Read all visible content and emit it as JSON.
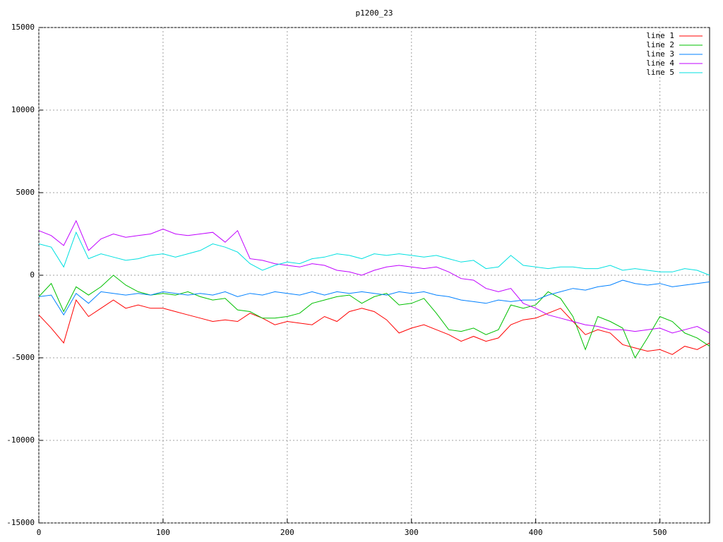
{
  "chart_data": {
    "type": "line",
    "title": "p1200_23",
    "x": [
      0,
      10,
      20,
      30,
      40,
      50,
      60,
      70,
      80,
      90,
      100,
      110,
      120,
      130,
      140,
      150,
      160,
      170,
      180,
      190,
      200,
      210,
      220,
      230,
      240,
      250,
      260,
      270,
      280,
      290,
      300,
      310,
      320,
      330,
      340,
      350,
      360,
      370,
      380,
      390,
      400,
      410,
      420,
      430,
      440,
      450,
      460,
      470,
      480,
      490,
      500,
      510,
      520,
      530,
      540
    ],
    "xlim": [
      0,
      540
    ],
    "xticks": [
      0,
      100,
      200,
      300,
      400,
      500
    ],
    "ylim": [
      -15000,
      15000
    ],
    "yticks": [
      -15000,
      -10000,
      -5000,
      0,
      5000,
      10000,
      15000
    ],
    "grid": true,
    "legend": "top-right",
    "series": [
      {
        "name": "line 1",
        "color": "#ff0000",
        "values": [
          -2400,
          -3200,
          -4100,
          -1500,
          -2500,
          -2000,
          -1500,
          -2000,
          -1800,
          -2000,
          -2000,
          -2200,
          -2400,
          -2600,
          -2800,
          -2700,
          -2800,
          -2300,
          -2600,
          -3000,
          -2800,
          -2900,
          -3000,
          -2500,
          -2800,
          -2200,
          -2000,
          -2200,
          -2700,
          -3500,
          -3200,
          -3000,
          -3300,
          -3600,
          -4000,
          -3700,
          -4000,
          -3800,
          -3000,
          -2700,
          -2600,
          -2300,
          -2000,
          -2800,
          -3600,
          -3300,
          -3500,
          -4200,
          -4400,
          -4600,
          -4500,
          -4800,
          -4300,
          -4500,
          -4100
        ]
      },
      {
        "name": "line 2",
        "color": "#00c000",
        "values": [
          -1300,
          -500,
          -2200,
          -700,
          -1200,
          -700,
          0,
          -600,
          -1000,
          -1200,
          -1100,
          -1200,
          -1000,
          -1300,
          -1500,
          -1400,
          -2100,
          -2200,
          -2600,
          -2600,
          -2500,
          -2300,
          -1700,
          -1500,
          -1300,
          -1200,
          -1700,
          -1300,
          -1100,
          -1800,
          -1700,
          -1400,
          -2300,
          -3300,
          -3400,
          -3200,
          -3600,
          -3300,
          -1800,
          -2000,
          -1800,
          -1000,
          -1400,
          -2500,
          -4500,
          -2500,
          -2800,
          -3200,
          -5000,
          -3800,
          -2500,
          -2800,
          -3500,
          -3800,
          -4300
        ]
      },
      {
        "name": "line 3",
        "color": "#0080ff",
        "values": [
          -1300,
          -1200,
          -2400,
          -1100,
          -1700,
          -1000,
          -1100,
          -1200,
          -1100,
          -1200,
          -1000,
          -1100,
          -1200,
          -1100,
          -1200,
          -1000,
          -1300,
          -1100,
          -1200,
          -1000,
          -1100,
          -1200,
          -1000,
          -1200,
          -1000,
          -1100,
          -1000,
          -1100,
          -1200,
          -1000,
          -1100,
          -1000,
          -1200,
          -1300,
          -1500,
          -1600,
          -1700,
          -1500,
          -1600,
          -1500,
          -1500,
          -1200,
          -1000,
          -800,
          -900,
          -700,
          -600,
          -300,
          -500,
          -600,
          -500,
          -700,
          -600,
          -500,
          -400
        ]
      },
      {
        "name": "line 4",
        "color": "#c000ff",
        "values": [
          2700,
          2400,
          1800,
          3300,
          1500,
          2200,
          2500,
          2300,
          2400,
          2500,
          2800,
          2500,
          2400,
          2500,
          2600,
          2000,
          2700,
          1000,
          900,
          700,
          600,
          500,
          700,
          600,
          300,
          200,
          0,
          300,
          500,
          600,
          500,
          400,
          500,
          200,
          -200,
          -300,
          -800,
          -1000,
          -800,
          -1700,
          -2000,
          -2400,
          -2600,
          -2800,
          -3000,
          -3100,
          -3300,
          -3300,
          -3400,
          -3300,
          -3200,
          -3500,
          -3300,
          -3100,
          -3500
        ]
      },
      {
        "name": "line 5",
        "color": "#00e0e0",
        "values": [
          1900,
          1700,
          500,
          2600,
          1000,
          1300,
          1100,
          900,
          1000,
          1200,
          1300,
          1100,
          1300,
          1500,
          1900,
          1700,
          1400,
          700,
          300,
          600,
          800,
          700,
          1000,
          1100,
          1300,
          1200,
          1000,
          1300,
          1200,
          1300,
          1200,
          1100,
          1200,
          1000,
          800,
          900,
          400,
          500,
          1200,
          600,
          500,
          400,
          500,
          500,
          400,
          400,
          600,
          300,
          400,
          300,
          200,
          200,
          400,
          300,
          0
        ]
      }
    ]
  }
}
